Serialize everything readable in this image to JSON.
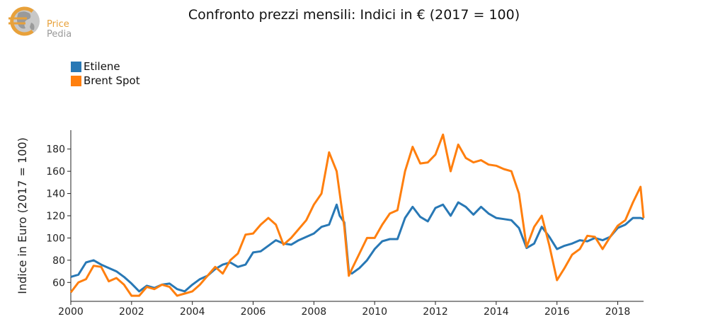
{
  "logo": {
    "line1": "Price",
    "line2": "Pedia"
  },
  "chart_data": {
    "type": "line",
    "title": "Confronto prezzi mensili: Indici in € (2017 = 100)",
    "xlabel": "",
    "ylabel": "Indice in Euro (2017 = 100)",
    "xlim": [
      2000,
      2018.85
    ],
    "ylim": [
      43,
      197
    ],
    "x_ticks": [
      2000,
      2002,
      2004,
      2006,
      2008,
      2010,
      2012,
      2014,
      2016,
      2018
    ],
    "y_ticks": [
      60,
      80,
      100,
      120,
      140,
      160,
      180
    ],
    "legend_position": "top-left",
    "grid": false,
    "series": [
      {
        "name": "Etilene",
        "color": "#2878b5",
        "points": [
          [
            2000.0,
            65
          ],
          [
            2000.25,
            67
          ],
          [
            2000.5,
            78
          ],
          [
            2000.75,
            80
          ],
          [
            2001.0,
            76
          ],
          [
            2001.25,
            73
          ],
          [
            2001.5,
            70
          ],
          [
            2001.75,
            65
          ],
          [
            2002.0,
            59
          ],
          [
            2002.25,
            52
          ],
          [
            2002.5,
            57
          ],
          [
            2002.75,
            55
          ],
          [
            2003.0,
            58
          ],
          [
            2003.25,
            59
          ],
          [
            2003.5,
            54
          ],
          [
            2003.75,
            52
          ],
          [
            2004.0,
            58
          ],
          [
            2004.25,
            63
          ],
          [
            2004.5,
            66
          ],
          [
            2004.75,
            72
          ],
          [
            2005.0,
            76
          ],
          [
            2005.25,
            78
          ],
          [
            2005.5,
            74
          ],
          [
            2005.75,
            76
          ],
          [
            2006.0,
            87
          ],
          [
            2006.25,
            88
          ],
          [
            2006.5,
            93
          ],
          [
            2006.75,
            98
          ],
          [
            2007.0,
            95
          ],
          [
            2007.25,
            94
          ],
          [
            2007.5,
            98
          ],
          [
            2007.75,
            101
          ],
          [
            2008.0,
            104
          ],
          [
            2008.25,
            110
          ],
          [
            2008.5,
            112
          ],
          [
            2008.75,
            130
          ],
          [
            2008.85,
            120
          ],
          [
            2009.0,
            114
          ],
          [
            2009.15,
            70
          ],
          [
            2009.25,
            68
          ],
          [
            2009.5,
            73
          ],
          [
            2009.75,
            80
          ],
          [
            2010.0,
            90
          ],
          [
            2010.25,
            97
          ],
          [
            2010.5,
            99
          ],
          [
            2010.75,
            99
          ],
          [
            2011.0,
            118
          ],
          [
            2011.25,
            128
          ],
          [
            2011.5,
            119
          ],
          [
            2011.75,
            115
          ],
          [
            2012.0,
            127
          ],
          [
            2012.25,
            130
          ],
          [
            2012.5,
            120
          ],
          [
            2012.75,
            132
          ],
          [
            2013.0,
            128
          ],
          [
            2013.25,
            121
          ],
          [
            2013.5,
            128
          ],
          [
            2013.75,
            122
          ],
          [
            2014.0,
            118
          ],
          [
            2014.25,
            117
          ],
          [
            2014.5,
            116
          ],
          [
            2014.75,
            109
          ],
          [
            2015.0,
            91
          ],
          [
            2015.25,
            95
          ],
          [
            2015.5,
            110
          ],
          [
            2015.75,
            101
          ],
          [
            2016.0,
            90
          ],
          [
            2016.25,
            93
          ],
          [
            2016.5,
            95
          ],
          [
            2016.75,
            98
          ],
          [
            2017.0,
            97
          ],
          [
            2017.25,
            100
          ],
          [
            2017.5,
            98
          ],
          [
            2017.75,
            101
          ],
          [
            2018.0,
            109
          ],
          [
            2018.25,
            112
          ],
          [
            2018.5,
            118
          ],
          [
            2018.75,
            118
          ],
          [
            2018.85,
            117
          ]
        ]
      },
      {
        "name": "Brent Spot",
        "color": "#ff7f0e",
        "points": [
          [
            2000.0,
            51
          ],
          [
            2000.25,
            60
          ],
          [
            2000.5,
            63
          ],
          [
            2000.75,
            75
          ],
          [
            2001.0,
            74
          ],
          [
            2001.25,
            61
          ],
          [
            2001.5,
            64
          ],
          [
            2001.75,
            58
          ],
          [
            2002.0,
            48
          ],
          [
            2002.25,
            48
          ],
          [
            2002.5,
            56
          ],
          [
            2002.75,
            54
          ],
          [
            2003.0,
            58
          ],
          [
            2003.25,
            56
          ],
          [
            2003.5,
            48
          ],
          [
            2003.75,
            50
          ],
          [
            2004.0,
            52
          ],
          [
            2004.25,
            58
          ],
          [
            2004.5,
            66
          ],
          [
            2004.75,
            74
          ],
          [
            2005.0,
            68
          ],
          [
            2005.25,
            80
          ],
          [
            2005.5,
            86
          ],
          [
            2005.75,
            103
          ],
          [
            2006.0,
            104
          ],
          [
            2006.25,
            112
          ],
          [
            2006.5,
            118
          ],
          [
            2006.75,
            112
          ],
          [
            2007.0,
            94
          ],
          [
            2007.25,
            100
          ],
          [
            2007.5,
            108
          ],
          [
            2007.75,
            116
          ],
          [
            2008.0,
            130
          ],
          [
            2008.25,
            140
          ],
          [
            2008.5,
            177
          ],
          [
            2008.75,
            160
          ],
          [
            2009.0,
            110
          ],
          [
            2009.15,
            66
          ],
          [
            2009.25,
            72
          ],
          [
            2009.5,
            86
          ],
          [
            2009.75,
            100
          ],
          [
            2010.0,
            100
          ],
          [
            2010.25,
            112
          ],
          [
            2010.5,
            122
          ],
          [
            2010.75,
            125
          ],
          [
            2011.0,
            160
          ],
          [
            2011.25,
            182
          ],
          [
            2011.5,
            167
          ],
          [
            2011.75,
            168
          ],
          [
            2012.0,
            175
          ],
          [
            2012.25,
            193
          ],
          [
            2012.5,
            160
          ],
          [
            2012.75,
            184
          ],
          [
            2013.0,
            172
          ],
          [
            2013.25,
            168
          ],
          [
            2013.5,
            170
          ],
          [
            2013.75,
            166
          ],
          [
            2014.0,
            165
          ],
          [
            2014.25,
            162
          ],
          [
            2014.5,
            160
          ],
          [
            2014.75,
            140
          ],
          [
            2015.0,
            92
          ],
          [
            2015.25,
            110
          ],
          [
            2015.5,
            120
          ],
          [
            2015.75,
            93
          ],
          [
            2016.0,
            62
          ],
          [
            2016.25,
            73
          ],
          [
            2016.5,
            85
          ],
          [
            2016.75,
            90
          ],
          [
            2017.0,
            102
          ],
          [
            2017.25,
            101
          ],
          [
            2017.5,
            90
          ],
          [
            2017.75,
            101
          ],
          [
            2018.0,
            111
          ],
          [
            2018.25,
            116
          ],
          [
            2018.5,
            132
          ],
          [
            2018.75,
            146
          ],
          [
            2018.85,
            118
          ]
        ]
      }
    ]
  }
}
